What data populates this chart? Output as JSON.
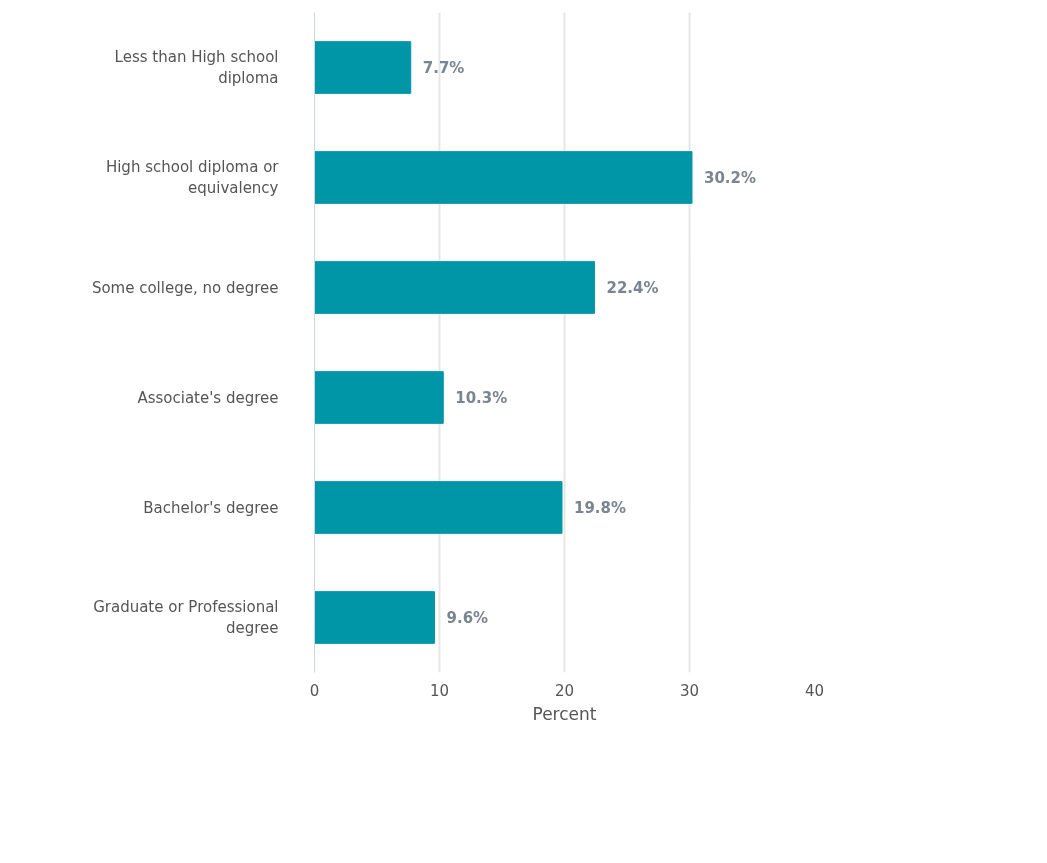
{
  "chart_data": {
    "type": "bar",
    "orientation": "horizontal",
    "xlabel": "Percent",
    "categories": [
      "Less than High school diploma",
      "High school diploma or equivalency",
      "Some college, no degree",
      "Associate's degree",
      "Bachelor's degree",
      "Graduate or Professional degree"
    ],
    "values": [
      7.7,
      30.2,
      22.4,
      10.3,
      19.8,
      9.6
    ],
    "value_labels": [
      "7.7%",
      "30.2%",
      "22.4%",
      "10.3%",
      "19.8%",
      "9.6%"
    ],
    "color": "#0096a8",
    "xlim": [
      0,
      40
    ],
    "xticks": [
      0,
      10,
      20,
      30,
      40
    ],
    "grid": "x"
  }
}
